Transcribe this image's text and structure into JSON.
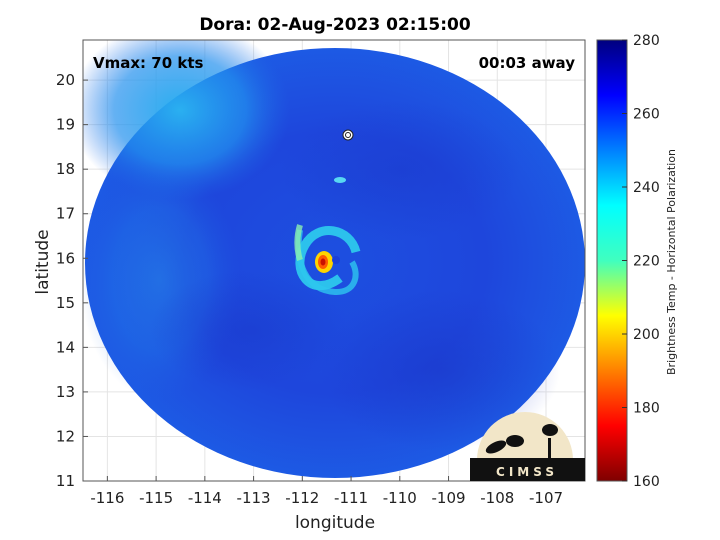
{
  "chart_data": {
    "type": "heatmap",
    "title": "Dora: 02-Aug-2023 02:15:00",
    "xlabel": "longitude",
    "ylabel": "latitude",
    "xlim": [
      -116.5,
      -106.2
    ],
    "ylim": [
      11,
      20.9
    ],
    "x_ticks": [
      -116,
      -115,
      -114,
      -113,
      -112,
      -111,
      -110,
      -109,
      -108,
      -107
    ],
    "y_ticks": [
      11,
      12,
      13,
      14,
      15,
      16,
      17,
      18,
      19,
      20
    ],
    "grid": true,
    "annotations": {
      "vmax": "Vmax: 70 kts",
      "time_offset": "00:03 away"
    },
    "colorbar": {
      "label": "Brightness Temp - Horizontal Polarization",
      "range": [
        160,
        280
      ],
      "ticks": [
        160,
        180,
        200,
        220,
        240,
        260,
        280
      ],
      "colormap": "jet"
    },
    "storm_center": {
      "lon": -111.3,
      "lat": 15.95
    },
    "background_temp": 262,
    "eyewall_min_temp": 190,
    "logo_text": "CIMSS"
  },
  "colors": {
    "colormap_stops": [
      "#7f0000",
      "#ff0000",
      "#ffff00",
      "#00ffff",
      "#0000ff",
      "#00007f"
    ],
    "grid": "#dddddd",
    "logo_bg": "#f2e6c8",
    "logo_fg": "#111111"
  }
}
